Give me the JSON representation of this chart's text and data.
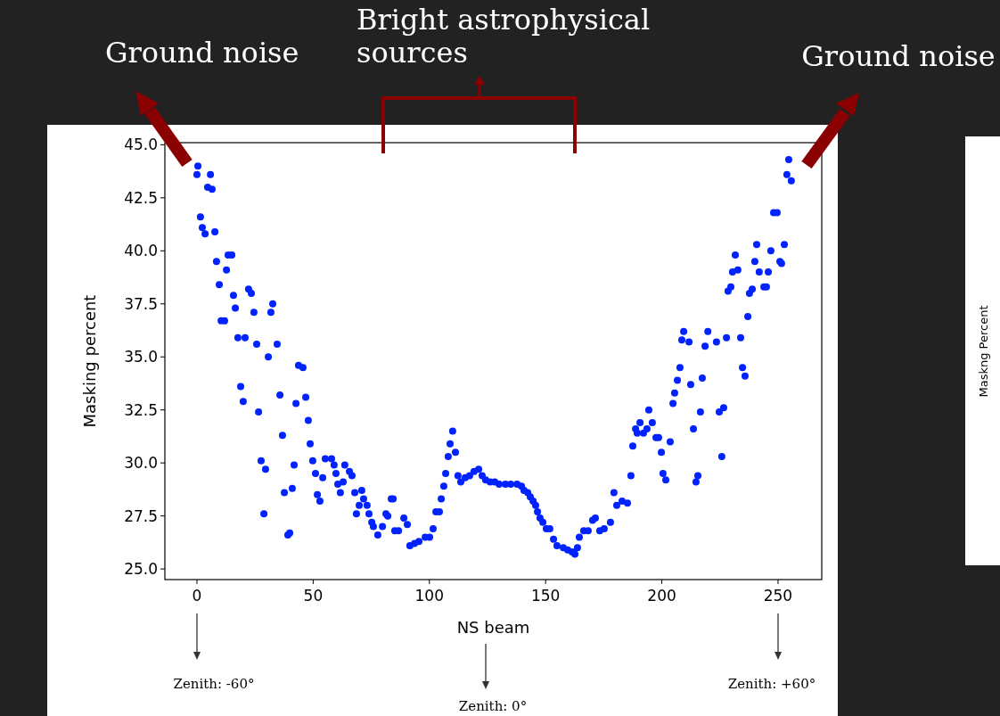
{
  "chart_data": {
    "type": "scatter",
    "xlabel": "NS beam",
    "ylabel": "Masking percent",
    "xlim": [
      -13.8,
      268.8
    ],
    "ylim": [
      24.5,
      45.1
    ],
    "xticks": [
      0,
      50,
      100,
      150,
      200,
      250
    ],
    "yticks": [
      {
        "value": 25,
        "label": "25.0"
      },
      {
        "value": 27.5,
        "label": "27.5"
      },
      {
        "value": 30,
        "label": "30.0"
      },
      {
        "value": 32.5,
        "label": "32.5"
      },
      {
        "value": 35,
        "label": "35.0"
      },
      {
        "value": 37.5,
        "label": "37.5"
      },
      {
        "value": 40,
        "label": "40.0"
      },
      {
        "value": 42.5,
        "label": "42.5"
      },
      {
        "value": 45,
        "label": "45.0"
      }
    ],
    "marker": "circle",
    "grid": false,
    "annotations": [
      "Ground noise",
      "Bright astrophysical sources",
      "Ground noise",
      "Zenith: -60°",
      "Zenith: 0°",
      "Zenith: +60°",
      "Maskng Percent"
    ],
    "series": [
      {
        "color": "#0022ff",
        "x": [
          0.4,
          0,
          5.8,
          4.6,
          6.5,
          1.5,
          2.3,
          3.5,
          7.7,
          13.4,
          15,
          8.4,
          12.7,
          9.6,
          15.7,
          22.2,
          23.4,
          16.5,
          24.5,
          32.6,
          31.8,
          10.4,
          11.9,
          17.6,
          20.7,
          25.7,
          34.5,
          30.7,
          43.7,
          45.6,
          18.8,
          19.9,
          35.7,
          46.8,
          42.6,
          26.5,
          47.9,
          36.8,
          48.7,
          49.8,
          27.6,
          29.5,
          41.8,
          51,
          54.1,
          55.2,
          57.9,
          59,
          59.8,
          63.6,
          65.6,
          66.7,
          62.9,
          60.6,
          61.7,
          51.8,
          52.9,
          37.6,
          41,
          67.9,
          70.9,
          71.7,
          69.8,
          73.2,
          74,
          68.6,
          28.8,
          75.2,
          75.9,
          77.8,
          79.8,
          81.3,
          39.1,
          39.9,
          82.1,
          83.6,
          84.4,
          85.1,
          86.7,
          89,
          90.5,
          91.6,
          93.6,
          95.5,
          98.2,
          100.1,
          101.6,
          102.8,
          104.3,
          105.1,
          106.2,
          107,
          108.1,
          108.9,
          111.2,
          110,
          112.3,
          113.5,
          115.4,
          117.3,
          119.2,
          121.2,
          122.7,
          124.2,
          126.1,
          128.1,
          130,
          132.7,
          135,
          137.7,
          139.6,
          140.7,
          142.3,
          143.4,
          144.6,
          145.7,
          146.5,
          147.6,
          148.8,
          150.3,
          151.8,
          153.4,
          154.9,
          157.6,
          159.5,
          161.4,
          162.6,
          163.7,
          164.5,
          166.4,
          168.3,
          170.2,
          171.4,
          173.3,
          175.2,
          177.9,
          179.4,
          180.6,
          182.9,
          185.2,
          186.7,
          187.5,
          188.7,
          189.4,
          190.6,
          192.1,
          193.6,
          194.4,
          195.9,
          197.5,
          198.6,
          199.8,
          200.5,
          201.7,
          203.6,
          204.8,
          205.5,
          206.7,
          207.8,
          208.6,
          209.4,
          211.7,
          212.4,
          213.6,
          214.7,
          215.5,
          216.6,
          217.4,
          218.6,
          219.8,
          223.5,
          225.8,
          224.7,
          226.6,
          227.8,
          228.5,
          229.7,
          230.4,
          232.7,
          231.6,
          233.9,
          234.7,
          235.8,
          237,
          237.7,
          238.9,
          240,
          240.8,
          241.9,
          243.9,
          245,
          245.8,
          246.9,
          248.1,
          249.6,
          250.8,
          251.5,
          252.7,
          253.8,
          254.6,
          255.7
        ],
        "values": [
          44,
          43.6,
          43.6,
          43,
          42.9,
          41.6,
          41.1,
          40.8,
          40.9,
          39.8,
          39.8,
          39.5,
          39.1,
          38.4,
          37.9,
          38.2,
          38,
          37.3,
          37.1,
          37.5,
          37.1,
          36.7,
          36.7,
          35.9,
          35.9,
          35.6,
          35.6,
          35,
          34.6,
          34.5,
          33.6,
          32.9,
          33.2,
          33.1,
          32.8,
          32.4,
          32,
          31.3,
          30.9,
          30.1,
          30.1,
          29.7,
          29.9,
          29.5,
          29.3,
          30.2,
          30.2,
          29.9,
          29.5,
          29.9,
          29.6,
          29.4,
          29.1,
          29,
          28.6,
          28.5,
          28.2,
          28.6,
          28.8,
          28.6,
          28.7,
          28.3,
          28,
          28,
          27.6,
          27.6,
          27.6,
          27.2,
          27,
          26.6,
          27,
          27.6,
          26.6,
          26.7,
          27.5,
          28.3,
          28.3,
          26.8,
          26.8,
          27.4,
          27.1,
          26.1,
          26.2,
          26.3,
          26.5,
          26.5,
          26.9,
          27.7,
          27.7,
          28.3,
          28.9,
          29.5,
          30.3,
          30.9,
          30.5,
          31.5,
          29.4,
          29.1,
          29.3,
          29.4,
          29.6,
          29.7,
          29.4,
          29.2,
          29.1,
          29.1,
          29,
          29,
          29,
          29,
          28.9,
          28.7,
          28.6,
          28.4,
          28.2,
          28,
          27.7,
          27.4,
          27.2,
          26.9,
          26.9,
          26.4,
          26.1,
          26,
          25.9,
          25.8,
          25.7,
          26,
          26.5,
          26.8,
          26.8,
          27.3,
          27.4,
          26.8,
          26.9,
          27.2,
          28.6,
          28,
          28.2,
          28.1,
          29.4,
          30.8,
          31.6,
          31.4,
          31.9,
          31.4,
          31.6,
          32.5,
          31.9,
          31.2,
          31.2,
          30.5,
          29.5,
          29.2,
          31,
          32.8,
          33.3,
          33.9,
          34.5,
          35.8,
          36.2,
          35.7,
          33.7,
          31.6,
          29.1,
          29.4,
          32.4,
          34,
          35.5,
          36.2,
          35.7,
          30.3,
          32.4,
          32.6,
          35.9,
          38.1,
          38.3,
          39,
          39.1,
          39.8,
          35.9,
          34.5,
          34.1,
          36.9,
          38,
          38.2,
          39.5,
          40.3,
          39,
          38.3,
          38.3,
          39,
          40,
          41.8,
          41.8,
          39.5,
          39.4,
          40.3,
          43.6,
          44.3,
          43.3
        ]
      }
    ]
  }
}
